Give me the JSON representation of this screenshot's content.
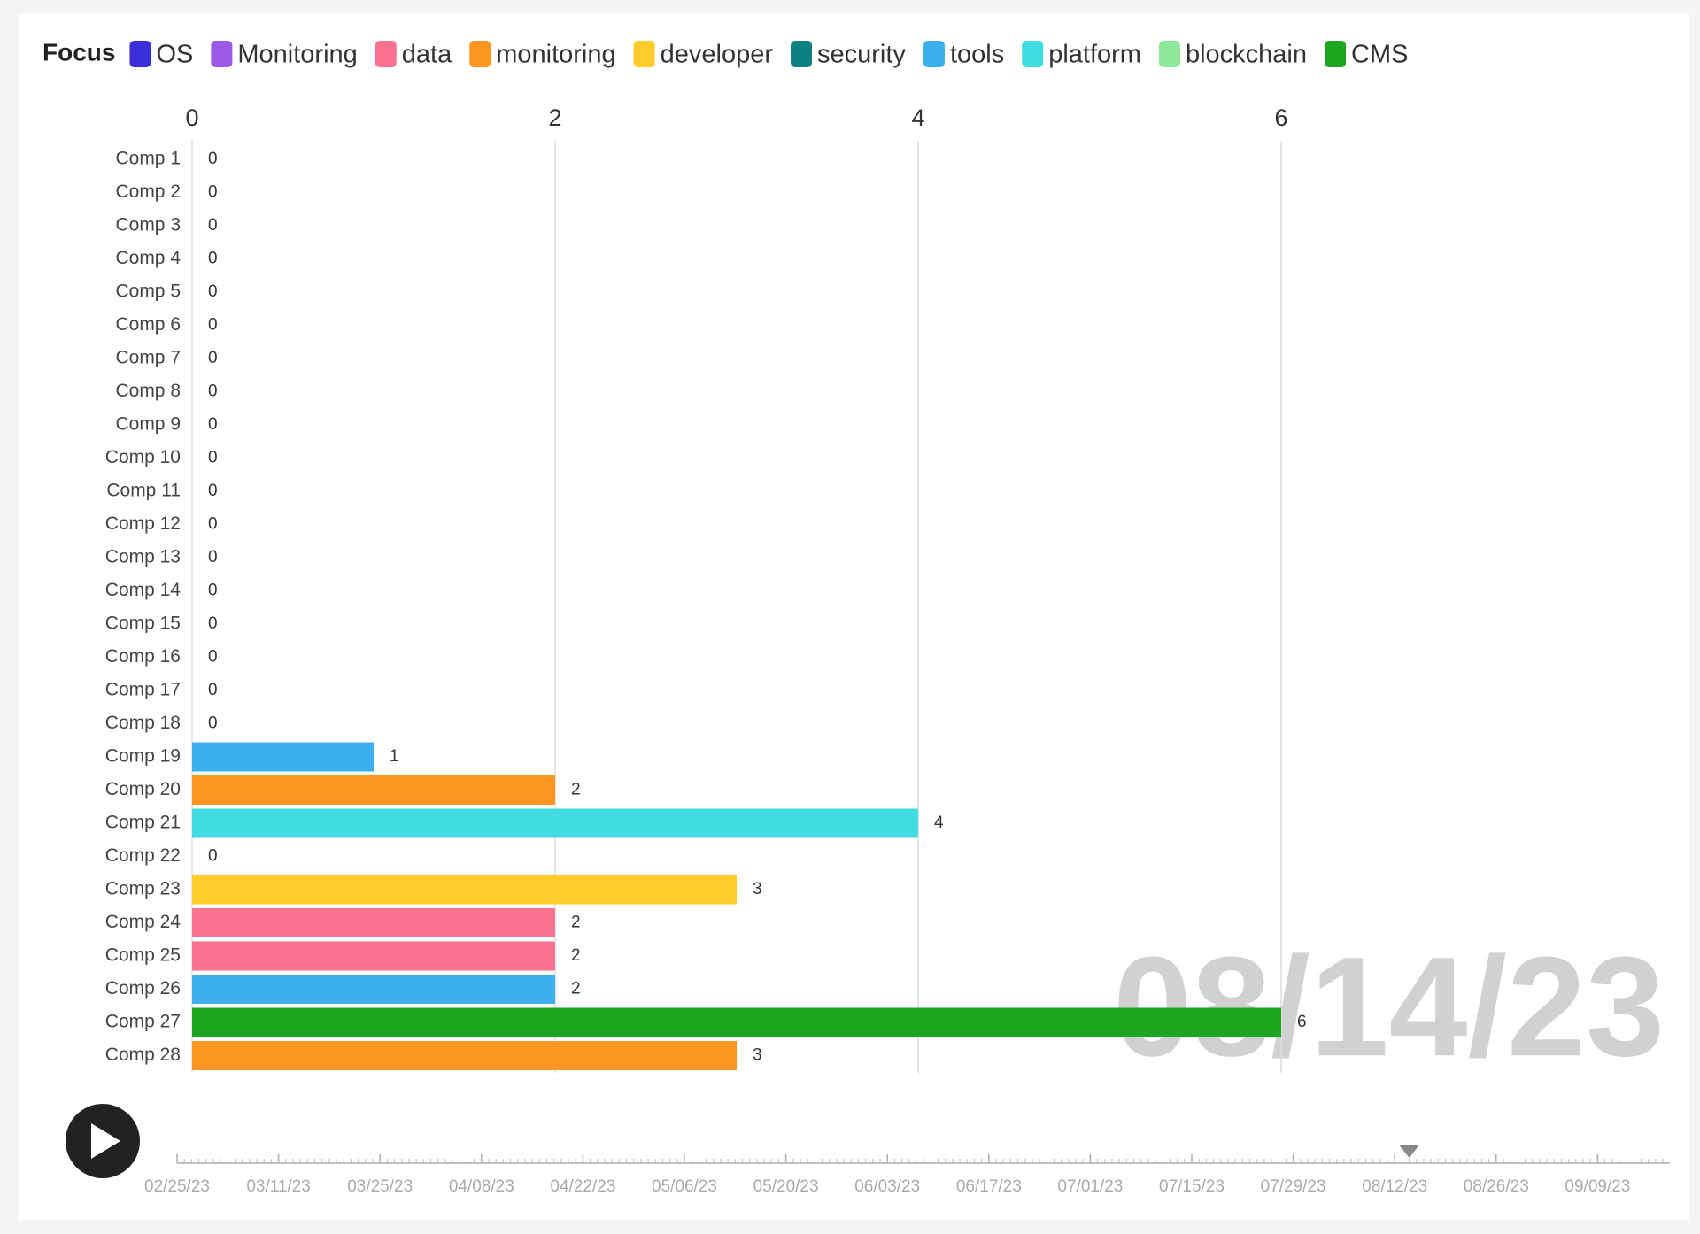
{
  "chart_data": {
    "type": "bar",
    "orientation": "horizontal",
    "legend": {
      "title": "Focus",
      "items": [
        {
          "name": "OS",
          "color": "#3b2fd9"
        },
        {
          "name": "Monitoring",
          "color": "#9b59e8"
        },
        {
          "name": "data",
          "color": "#fb7391"
        },
        {
          "name": "monitoring",
          "color": "#fd9522"
        },
        {
          "name": "developer",
          "color": "#fecc2a"
        },
        {
          "name": "security",
          "color": "#0f7f86"
        },
        {
          "name": "tools",
          "color": "#3cb0ee"
        },
        {
          "name": "platform",
          "color": "#41dce2"
        },
        {
          "name": "blockchain",
          "color": "#8ee89a"
        },
        {
          "name": "CMS",
          "color": "#1da51f"
        }
      ]
    },
    "categories": [
      "Comp 1",
      "Comp 2",
      "Comp 3",
      "Comp 4",
      "Comp 5",
      "Comp 6",
      "Comp 7",
      "Comp 8",
      "Comp 9",
      "Comp 10",
      "Comp 11",
      "Comp 12",
      "Comp 13",
      "Comp 14",
      "Comp 15",
      "Comp 16",
      "Comp 17",
      "Comp 18",
      "Comp 19",
      "Comp 20",
      "Comp 21",
      "Comp 22",
      "Comp 23",
      "Comp 24",
      "Comp 25",
      "Comp 26",
      "Comp 27",
      "Comp 28"
    ],
    "values": [
      0,
      0,
      0,
      0,
      0,
      0,
      0,
      0,
      0,
      0,
      0,
      0,
      0,
      0,
      0,
      0,
      0,
      0,
      1,
      2,
      4,
      0,
      3,
      2,
      2,
      2,
      6,
      3
    ],
    "colors": [
      null,
      null,
      null,
      null,
      null,
      null,
      null,
      null,
      null,
      null,
      null,
      null,
      null,
      null,
      null,
      null,
      null,
      null,
      "#3cb0ee",
      "#fd9522",
      "#41dce2",
      null,
      "#fecc2a",
      "#fb7391",
      "#fb7391",
      "#3cb0ee",
      "#1da51f",
      "#fd9522"
    ],
    "xlim": [
      0,
      8
    ],
    "xticks": [
      0,
      2,
      4,
      6
    ],
    "grid": true,
    "current_date": "08/14/23",
    "timeline_labels": [
      "02/25/23",
      "03/11/23",
      "03/25/23",
      "04/08/23",
      "04/22/23",
      "05/06/23",
      "05/20/23",
      "06/03/23",
      "06/17/23",
      "07/01/23",
      "07/15/23",
      "07/29/23",
      "08/12/23",
      "08/26/23",
      "09/09/23"
    ]
  }
}
